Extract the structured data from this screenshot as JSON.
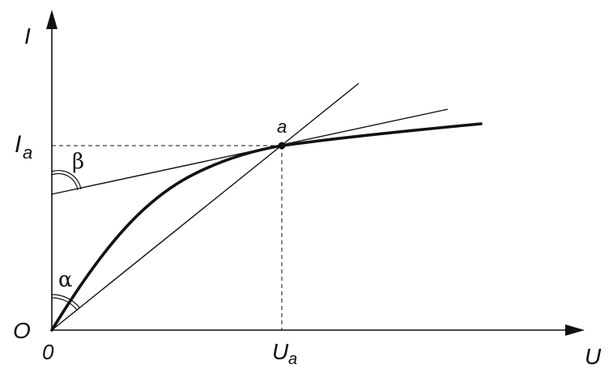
{
  "labels": {
    "y_axis": "I",
    "x_axis": "U",
    "origin_letter": "O",
    "origin_zero": "0",
    "point": "a",
    "i_main": "I",
    "i_sub": "a",
    "u_main": "U",
    "u_sub": "a",
    "alpha": "α",
    "beta": "β"
  },
  "colors": {
    "ink": "#111111",
    "background": "#ffffff"
  }
}
